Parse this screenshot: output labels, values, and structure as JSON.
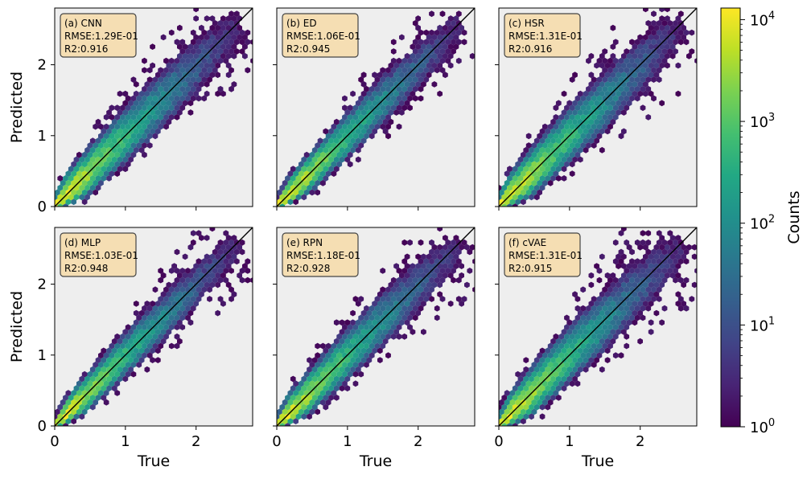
{
  "chart_data": [
    {
      "type": "scatter",
      "subtype": "hexbin-density",
      "label": "(a) CNN",
      "rmse": "RMSE:1.29E-01",
      "r2": "R2:0.916",
      "spread": 0.3,
      "xlabel": "",
      "ylabel": "Predicted",
      "xlim": [
        0,
        2.8
      ],
      "ylim": [
        0,
        2.8
      ],
      "xticks": [],
      "yticks": [
        "0",
        "1",
        "2"
      ],
      "reference_line": "y = x"
    },
    {
      "type": "scatter",
      "subtype": "hexbin-density",
      "label": "(b) ED",
      "rmse": "RMSE:1.06E-01",
      "r2": "R2:0.945",
      "spread": 0.25,
      "xlabel": "",
      "ylabel": "",
      "xlim": [
        0,
        2.8
      ],
      "ylim": [
        0,
        2.8
      ],
      "xticks": [],
      "yticks": [],
      "reference_line": "y = x"
    },
    {
      "type": "scatter",
      "subtype": "hexbin-density",
      "label": "(c) HSR",
      "rmse": "RMSE:1.31E-01",
      "r2": "R2:0.916",
      "spread": 0.31,
      "xlabel": "",
      "ylabel": "",
      "xlim": [
        0,
        2.8
      ],
      "ylim": [
        0,
        2.8
      ],
      "xticks": [],
      "yticks": [],
      "reference_line": "y = x"
    },
    {
      "type": "scatter",
      "subtype": "hexbin-density",
      "label": "(d) MLP",
      "rmse": "RMSE:1.03E-01",
      "r2": "R2:0.948",
      "spread": 0.24,
      "xlabel": "True",
      "ylabel": "Predicted",
      "xlim": [
        0,
        2.8
      ],
      "ylim": [
        0,
        2.8
      ],
      "xticks": [
        "0",
        "1",
        "2"
      ],
      "yticks": [
        "0",
        "1",
        "2"
      ],
      "reference_line": "y = x"
    },
    {
      "type": "scatter",
      "subtype": "hexbin-density",
      "label": "(e) RPN",
      "rmse": "RMSE:1.18E-01",
      "r2": "R2:0.928",
      "spread": 0.28,
      "xlabel": "True",
      "ylabel": "",
      "xlim": [
        0,
        2.8
      ],
      "ylim": [
        0,
        2.8
      ],
      "xticks": [
        "0",
        "1",
        "2"
      ],
      "yticks": [],
      "reference_line": "y = x"
    },
    {
      "type": "scatter",
      "subtype": "hexbin-density",
      "label": "(f) cVAE",
      "rmse": "RMSE:1.31E-01",
      "r2": "R2:0.915",
      "spread": 0.31,
      "xlabel": "True",
      "ylabel": "",
      "xlim": [
        0,
        2.8
      ],
      "ylim": [
        0,
        2.8
      ],
      "xticks": [
        "0",
        "1",
        "2"
      ],
      "yticks": [],
      "reference_line": "y = x"
    }
  ],
  "colorbar": {
    "label": "Counts",
    "scale": "log",
    "range": [
      1,
      13000
    ],
    "colormap": "viridis",
    "ticks": [
      {
        "base": "10",
        "exp": "0",
        "value": 1
      },
      {
        "base": "10",
        "exp": "1",
        "value": 10
      },
      {
        "base": "10",
        "exp": "2",
        "value": 100
      },
      {
        "base": "10",
        "exp": "3",
        "value": 1000
      },
      {
        "base": "10",
        "exp": "4",
        "value": 10000
      }
    ]
  },
  "colors": {
    "panel_background": "#eeeeee",
    "annotation_fill": "#f5deb3",
    "annotation_edge": "#444444",
    "reference_line": "#000000"
  }
}
